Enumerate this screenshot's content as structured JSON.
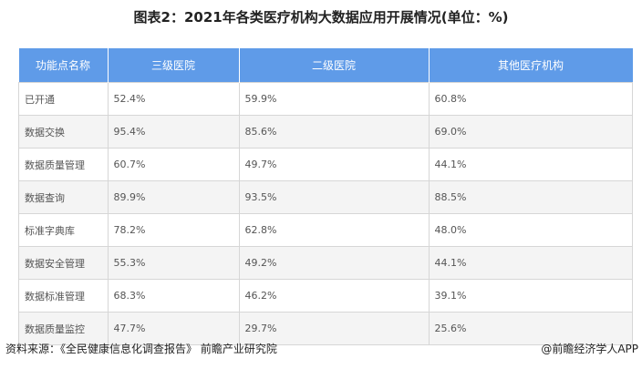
{
  "title": "图表2：2021年各类医疗机构大数据应用开展情况(单位：%)",
  "chart_data": {
    "type": "table",
    "title": "图表2：2021年各类医疗机构大数据应用开展情况(单位：%)",
    "columns": [
      "功能点名称",
      "三级医院",
      "二级医院",
      "其他医疗机构"
    ],
    "rows": [
      [
        "已开通",
        "52.4%",
        "59.9%",
        "60.8%"
      ],
      [
        "数据交换",
        "95.4%",
        "85.6%",
        "69.0%"
      ],
      [
        "数据质量管理",
        "60.7%",
        "49.7%",
        "44.1%"
      ],
      [
        "数据查询",
        "89.9%",
        "93.5%",
        "88.5%"
      ],
      [
        "标准字典库",
        "78.2%",
        "62.8%",
        "48.0%"
      ],
      [
        "数据安全管理",
        "55.3%",
        "49.2%",
        "44.1%"
      ],
      [
        "数据标准管理",
        "68.3%",
        "46.2%",
        "39.1%"
      ],
      [
        "数据质量监控",
        "47.7%",
        "29.7%",
        "25.6%"
      ]
    ],
    "header_color": "#5f9be8"
  },
  "footer": {
    "source": "资料来源：《全民健康信息化调查报告》 前瞻产业研究院",
    "credit": "@前瞻经济学人APP"
  },
  "watermark": "前瞻产业研究院"
}
